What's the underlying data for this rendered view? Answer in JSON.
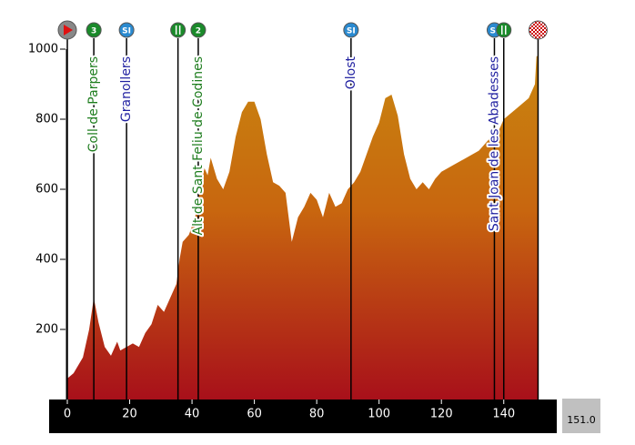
{
  "chart_data": {
    "type": "area",
    "x": [
      0,
      2,
      5,
      7,
      8.5,
      10,
      12,
      14,
      16,
      17,
      19,
      21,
      23,
      25,
      27,
      29,
      31,
      33,
      35,
      36,
      37,
      39,
      41,
      42,
      44,
      45,
      46,
      48,
      50,
      52,
      54,
      56,
      58,
      60,
      62,
      64,
      66,
      68,
      70,
      72,
      74,
      76,
      78,
      80,
      82,
      84,
      86,
      88,
      90,
      92,
      94,
      96,
      98,
      100,
      102,
      104,
      106,
      108,
      110,
      112,
      114,
      116,
      118,
      120,
      124,
      128,
      132,
      136,
      138,
      140,
      144,
      148,
      150,
      150.5,
      151
    ],
    "values": [
      60,
      75,
      120,
      200,
      290,
      220,
      150,
      125,
      165,
      140,
      150,
      160,
      150,
      190,
      215,
      270,
      250,
      290,
      330,
      400,
      450,
      470,
      520,
      580,
      660,
      640,
      690,
      630,
      600,
      650,
      750,
      820,
      850,
      850,
      800,
      700,
      620,
      610,
      590,
      450,
      520,
      550,
      590,
      570,
      520,
      590,
      550,
      560,
      600,
      620,
      650,
      700,
      750,
      790,
      860,
      870,
      810,
      700,
      630,
      600,
      620,
      600,
      630,
      650,
      670,
      690,
      710,
      750,
      760,
      800,
      830,
      860,
      900,
      980,
      980
    ],
    "xlim": [
      0,
      157
    ],
    "ylim": [
      0,
      1000
    ],
    "xticks": [
      0,
      20,
      40,
      60,
      80,
      100,
      120,
      140
    ],
    "yticks": [
      200,
      400,
      600,
      800,
      1000
    ],
    "total_distance": "151.0",
    "markers": [
      {
        "x": 0,
        "icon": "start"
      },
      {
        "x": 8.5,
        "icon": "climb",
        "icon_text": "3",
        "label": "Coll de Parpers",
        "color": "#1e7d1e"
      },
      {
        "x": 19,
        "icon": "sprint",
        "icon_text": "SI",
        "label": "Granollers",
        "color": "#1f1fa0"
      },
      {
        "x": 35.5,
        "icon": "feed"
      },
      {
        "x": 42,
        "icon": "climb",
        "icon_text": "2",
        "label": "Alt de Sant Feliu de Codines",
        "color": "#1e7d1e"
      },
      {
        "x": 91,
        "icon": "sprint",
        "icon_text": "SI",
        "label": "Olost",
        "color": "#1f1fa0"
      },
      {
        "x": 137,
        "icon": "sprint",
        "icon_text": "SI",
        "label": "Sant Joan de les Abadesses",
        "color": "#1f1fa0"
      },
      {
        "x": 140,
        "icon": "feed"
      },
      {
        "x": 151,
        "icon": "finish"
      }
    ]
  }
}
